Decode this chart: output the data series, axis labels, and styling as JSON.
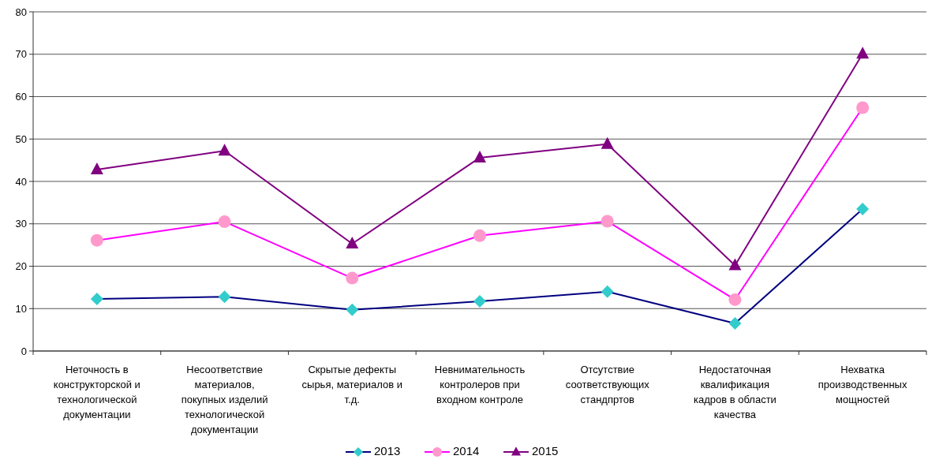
{
  "chart_data": {
    "type": "line",
    "categories": [
      "Неточность в\nконструкторской и\nтехнологической\nдокументации",
      "Несоответствие\nматериалов,\nпокупных изделий\nтехнологической\nдокументации",
      "Скрытые дефекты\nсырья, материалов и\nт.д.",
      "Невнимательность\nконтролеров при\nвходном контроле",
      "Отсутствие\nсоответствующих\nстандпртов",
      "Недостаточная\nквалификация\nкадров в области\nкачества",
      "Нехватка\nпроизводственных\nмощностей"
    ],
    "series": [
      {
        "name": "2013",
        "color": "#000080",
        "marker": "diamond",
        "colors": [
          "#33cccc",
          "#33cccc",
          "#33cccc",
          "#33cccc",
          "#33cccc",
          "#33cccc",
          "#33cccc"
        ],
        "values": [
          12.3,
          12.8,
          9.7,
          11.7,
          14.0,
          6.5,
          33.5
        ]
      },
      {
        "name": "2014",
        "color": "#ff00ff",
        "marker": "circle",
        "colors": [
          "#ff99cc",
          "#ff99cc",
          "#ff99cc",
          "#ff99cc",
          "#ff99cc",
          "#ff99cc",
          "#ff99cc"
        ],
        "values": [
          26.1,
          30.5,
          17.2,
          27.2,
          30.6,
          12.1,
          57.4
        ]
      },
      {
        "name": "2015",
        "color": "#800080",
        "marker": "triangle",
        "colors": [
          "#800080",
          "#800080",
          "#800080",
          "#800080",
          "#800080",
          "#800080",
          "#800080"
        ],
        "values": [
          42.8,
          47.2,
          25.3,
          45.6,
          48.8,
          20.2,
          70.1
        ]
      }
    ],
    "ylim": [
      0,
      80
    ],
    "yticks": [
      0,
      10,
      20,
      30,
      40,
      50,
      60,
      70,
      80
    ],
    "grid": "y",
    "legend": "bottom"
  }
}
